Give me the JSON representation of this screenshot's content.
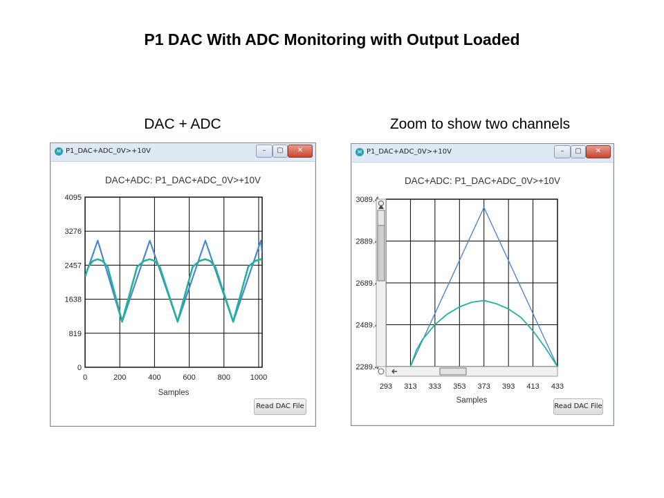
{
  "slide": {
    "title": "P1 DAC With ADC Monitoring with Output Loaded",
    "left_caption": "DAC + ADC",
    "right_caption": "Zoom to show two channels"
  },
  "windows": [
    {
      "title": "P1_DAC+ADC_0V>+10V",
      "chart_title": "DAC+ADC: P1_DAC+ADC_0V>+10V",
      "button_label": "Read DAC File",
      "win_buttons": [
        "–",
        "▢",
        "✕"
      ]
    },
    {
      "title": "P1_DAC+ADC_0V>+10V",
      "chart_title": "DAC+ADC: P1_DAC+ADC_0V>+10V",
      "button_label": "Read DAC File",
      "win_buttons": [
        "–",
        "▢",
        "✕"
      ]
    }
  ],
  "colors": {
    "dac_series": "#4a86d0",
    "adc_series": "#1fb39b",
    "titlebar": "#dfe9f5",
    "close_button": "#c7442d"
  },
  "chart_data": [
    {
      "type": "line",
      "title": "DAC+ADC: P1_DAC+ADC_0V>+10V",
      "xlabel": "Samples",
      "ylabel": "",
      "xlim": [
        0,
        1020
      ],
      "ylim": [
        0,
        4095
      ],
      "x_ticks": [
        0,
        200,
        400,
        600,
        800,
        1000
      ],
      "y_ticks": [
        0,
        819,
        1638,
        2457,
        3276,
        4095
      ],
      "y_tick_labels": [
        "0",
        "819",
        "1638",
        "2457",
        "3276",
        "4095"
      ],
      "grid": true,
      "series": [
        {
          "x": [
            0,
            73,
            213,
            373,
            533,
            693,
            853,
            1013,
            1020
          ],
          "y": [
            2180,
            3050,
            1090,
            3050,
            1090,
            3050,
            1090,
            3050,
            2750
          ]
        },
        {
          "x": [
            0,
            20,
            45,
            73,
            100,
            130,
            213,
            300,
            340,
            373,
            400,
            430,
            533,
            620,
            660,
            693,
            720,
            750,
            853,
            940,
            980,
            1013,
            1020
          ],
          "y": [
            2180,
            2430,
            2560,
            2600,
            2560,
            2420,
            1100,
            2420,
            2560,
            2600,
            2560,
            2420,
            1100,
            2420,
            2560,
            2600,
            2560,
            2420,
            1100,
            2420,
            2560,
            2600,
            2560
          ]
        }
      ]
    },
    {
      "type": "line",
      "title": "DAC+ADC: P1_DAC+ADC_0V>+10V",
      "xlabel": "Samples",
      "ylabel": "",
      "xlim": [
        293,
        433
      ],
      "ylim": [
        2289.4,
        3089.4
      ],
      "x_ticks": [
        293,
        313,
        333,
        353,
        373,
        393,
        413,
        433
      ],
      "y_ticks": [
        2289.4,
        2489.4,
        2689.4,
        2889.4,
        3089.4
      ],
      "y_tick_labels": [
        "2289.4",
        "2489.4",
        "2689.4",
        "2889.4",
        "3089.4"
      ],
      "grid": true,
      "series": [
        {
          "x": [
            313,
            373,
            433
          ],
          "y": [
            2289.4,
            3050,
            2289.4
          ]
        },
        {
          "x": [
            313,
            318,
            323,
            328,
            333,
            343,
            353,
            363,
            373,
            383,
            393,
            403,
            413,
            423,
            433
          ],
          "y": [
            2289.4,
            2370,
            2420,
            2455,
            2490,
            2540,
            2575,
            2597,
            2605,
            2590,
            2565,
            2525,
            2460,
            2380,
            2289.4
          ]
        }
      ]
    }
  ]
}
